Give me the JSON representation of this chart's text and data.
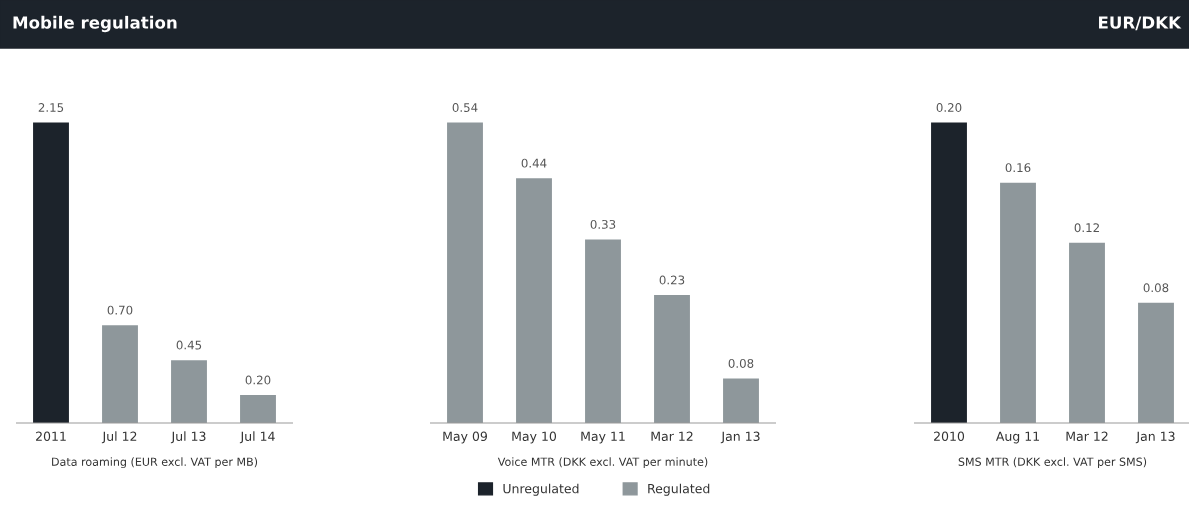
{
  "chart_data": [
    {
      "type": "bar",
      "title": "Mobile regulation",
      "xlabel": "Data roaming (EUR excl. VAT per MB)",
      "categories": [
        "2011",
        "Jul 12",
        "Jul 13",
        "Jul 14"
      ],
      "grid": false,
      "legend": "bottom",
      "series": [
        {
          "name": "Unregulated",
          "color": "#1c232b",
          "values": [
            2.15,
            null,
            null,
            null
          ],
          "value_labels": [
            "2.15",
            null,
            null,
            null
          ]
        },
        {
          "name": "Regulated",
          "color": "#8e979b",
          "values": [
            null,
            0.7,
            0.45,
            0.2
          ],
          "value_labels": [
            null,
            "0.70",
            "0.45",
            "0.20"
          ]
        }
      ]
    },
    {
      "type": "bar",
      "xlabel": "Voice MTR (DKK excl. VAT per minute)",
      "categories": [
        "May 09",
        "May 10",
        "May 11",
        "Mar 12",
        "Jan 13"
      ],
      "grid": false,
      "legend": "bottom",
      "series": [
        {
          "name": "Regulated",
          "color": "#8e979b",
          "values": [
            0.54,
            0.44,
            0.33,
            0.23,
            0.08
          ],
          "value_labels": [
            "0.54",
            "0.44",
            "0.33",
            "0.23",
            "0.08"
          ]
        }
      ]
    },
    {
      "type": "bar",
      "subtitle": "EUR/DKK",
      "xlabel": "SMS MTR (DKK excl. VAT per SMS)",
      "categories": [
        "2010",
        "Aug 11",
        "Mar 12",
        "Jan 13"
      ],
      "grid": false,
      "legend": "bottom",
      "series": [
        {
          "name": "Unregulated",
          "color": "#1c232b",
          "values": [
            0.2,
            null,
            null,
            null
          ],
          "value_labels": [
            "0.20",
            null,
            null,
            null
          ]
        },
        {
          "name": "Regulated",
          "color": "#8e979b",
          "values": [
            null,
            0.16,
            0.12,
            0.08
          ],
          "value_labels": [
            null,
            "0.16",
            "0.12",
            "0.08"
          ]
        }
      ]
    }
  ]
}
